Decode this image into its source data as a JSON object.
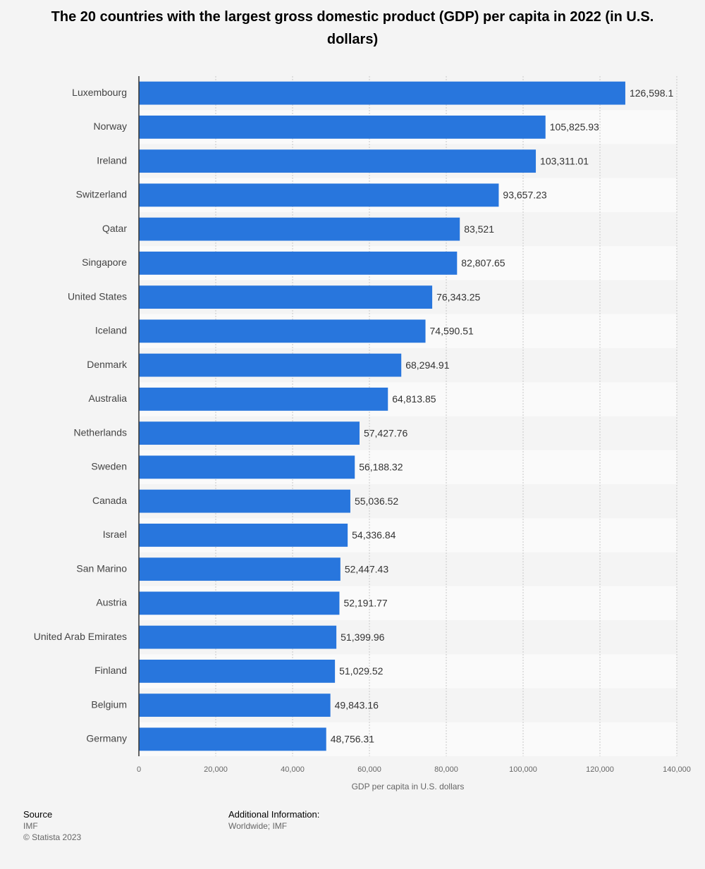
{
  "chart_data": {
    "type": "bar",
    "orientation": "horizontal",
    "title": "The 20 countries with the largest gross domestic product (GDP) per capita in 2022 (in U.S. dollars)",
    "x_label": "GDP per capita in U.S. dollars",
    "categories": [
      "Luxembourg",
      "Norway",
      "Ireland",
      "Switzerland",
      "Qatar",
      "Singapore",
      "United States",
      "Iceland",
      "Denmark",
      "Australia",
      "Netherlands",
      "Sweden",
      "Canada",
      "Israel",
      "San Marino",
      "Austria",
      "United Arab Emirates",
      "Finland",
      "Belgium",
      "Germany"
    ],
    "values": [
      126598.1,
      105825.93,
      103311.01,
      93657.23,
      83521,
      82807.65,
      76343.25,
      74590.51,
      68294.91,
      64813.85,
      57427.76,
      56188.32,
      55036.52,
      54336.84,
      52447.43,
      52191.77,
      51399.96,
      51029.52,
      49843.16,
      48756.31
    ],
    "value_labels": [
      "126,598.1",
      "105,825.93",
      "103,311.01",
      "93,657.23",
      "83,521",
      "82,807.65",
      "76,343.25",
      "74,590.51",
      "68,294.91",
      "64,813.85",
      "57,427.76",
      "56,188.32",
      "55,036.52",
      "54,336.84",
      "52,447.43",
      "52,191.77",
      "51,399.96",
      "51,029.52",
      "49,843.16",
      "48,756.31"
    ],
    "color": "#2876dd",
    "xlim": [
      0,
      140000
    ],
    "xticks": [
      0,
      {
        "value": 20000,
        "label": "20,000"
      },
      {
        "value": 40000,
        "label": "40,000"
      },
      {
        "value": 60000,
        "label": "60,000"
      },
      {
        "value": 80000,
        "label": "80,000"
      },
      {
        "value": 100000,
        "label": "100,000"
      },
      {
        "value": 120000,
        "label": "120,000"
      },
      {
        "value": 140000,
        "label": "140,000"
      }
    ],
    "grid": true
  },
  "footer": {
    "source_heading": "Source",
    "source": "IMF",
    "copyright": "© Statista 2023",
    "info_heading": "Additional Information:",
    "info": "Worldwide; IMF"
  }
}
